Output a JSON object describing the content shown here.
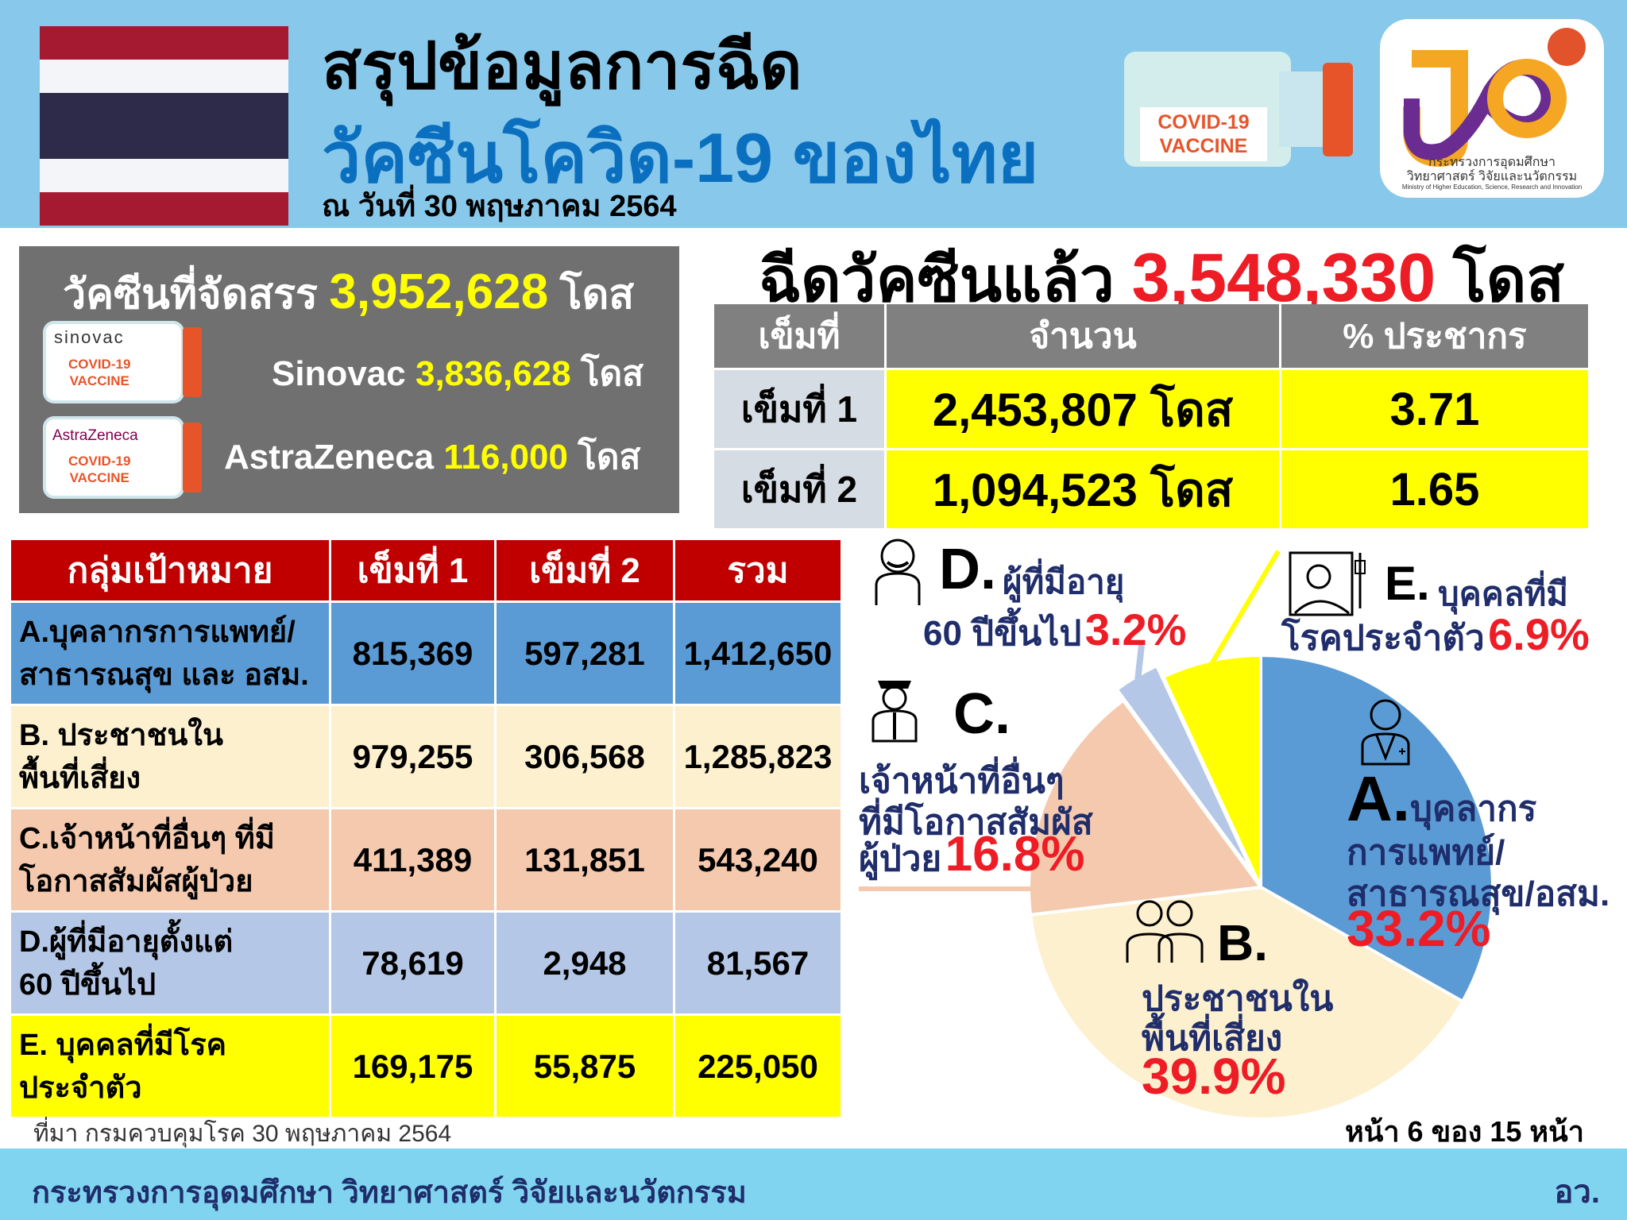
{
  "header": {
    "title_line1": "สรุปข้อมูลการฉีด",
    "title_line2": "วัคซีนโควิด-19 ของไทย",
    "date": "ณ วันที่ 30 พฤษภาคม 2564",
    "vial_label": [
      "COVID-19",
      "VACCINE"
    ],
    "logo_text": [
      "กระทรวงการอุดมศึกษา",
      "วิทยาศาสตร์ วิจัยและนวัตกรรม",
      "Ministry of Higher Education, Science, Research and Innovation"
    ],
    "flag_colors": [
      "#a51931",
      "#f4f5f8",
      "#2d2a4a",
      "#f4f5f8",
      "#a51931"
    ]
  },
  "allocation": {
    "label": "วัคซีนที่จัดสรร",
    "total": "3,952,628",
    "unit": "โดส",
    "vaccines": [
      {
        "brand": "sinovac",
        "vial_label": [
          "COVID-19",
          "VACCINE"
        ],
        "name": "Sinovac",
        "value": "3,836,628",
        "unit": "โดส"
      },
      {
        "brand": "AstraZeneca",
        "vial_label": [
          "COVID-19",
          "VACCINE"
        ],
        "name": "AstraZeneca",
        "value": "116,000",
        "unit": "โดส"
      }
    ]
  },
  "administered": {
    "label": "ฉีดวัคซีนแล้ว",
    "total": "3,548,330",
    "unit": "โดส",
    "columns": [
      "เข็มที่",
      "จำนวน",
      "% ประชากร"
    ],
    "rows": [
      {
        "dose": "เข็มที่ 1",
        "count": "2,453,807 โดส",
        "percent": "3.71"
      },
      {
        "dose": "เข็มที่ 2",
        "count": "1,094,523 โดส",
        "percent": "1.65"
      }
    ]
  },
  "groups_table": {
    "columns": [
      "กลุ่มเป้าหมาย",
      "เข็มที่ 1",
      "เข็มที่ 2",
      "รวม"
    ],
    "rows": [
      {
        "name": [
          "A.บุคลากรการแพทย์/",
          "สาธารณสุข และ อสม."
        ],
        "dose1": "815,369",
        "dose2": "597,281",
        "total": "1,412,650",
        "color": "#5b9bd5"
      },
      {
        "name": [
          "B. ประชาชนใน",
          "พื้นที่เสี่ยง"
        ],
        "dose1": "979,255",
        "dose2": "306,568",
        "total": "1,285,823",
        "color": "#fdf0cf"
      },
      {
        "name": [
          "C.เจ้าหน้าที่อื่นๆ ที่มี",
          "โอกาสสัมผัสผู้ป่วย"
        ],
        "dose1": "411,389",
        "dose2": "131,851",
        "total": "543,240",
        "color": "#f4c9ad"
      },
      {
        "name": [
          "D.ผู้ที่มีอายุตั้งแต่",
          "60 ปีขึ้นไป"
        ],
        "dose1": "78,619",
        "dose2": "2,948",
        "total": "81,567",
        "color": "#b4c7e7"
      },
      {
        "name": [
          "E. บุคคลที่มีโรค",
          "ประจำตัว"
        ],
        "dose1": "169,175",
        "dose2": "55,875",
        "total": "225,050",
        "color": "#ffff00"
      }
    ]
  },
  "source": "ที่มา กรมควบคุมโรค 30 พฤษภาคม 2564",
  "page_label": "หน้า 6 ของ 15 หน้า",
  "footer": {
    "ministry": "กระทรวงการอุดมศึกษา วิทยาศาสตร์ วิจัยและนวัตกรรม",
    "abbr": "อว."
  },
  "chart_data": {
    "type": "pie",
    "start": "top",
    "direction": "clockwise",
    "slices": [
      {
        "letter": "A.",
        "label": [
          "บุคลากร",
          "การแพทย์/",
          "สาธารณสุข/อสม."
        ],
        "value": 33.2,
        "pct": "33.2%",
        "color": "#5b9bd5",
        "icon": "doctor-icon"
      },
      {
        "letter": "B.",
        "label": [
          "ประชาชนใน",
          "พื้นที่เสี่ยง"
        ],
        "value": 39.9,
        "pct": "39.9%",
        "color": "#fdf0cf",
        "icon": "people-icon"
      },
      {
        "letter": "C.",
        "label": [
          "เจ้าหน้าที่อื่นๆ",
          "ที่มีโอกาสสัมผัส",
          "ผู้ป่วย"
        ],
        "value": 16.8,
        "pct": "16.8%",
        "color": "#f4c9ad",
        "icon": "officer-icon"
      },
      {
        "letter": "D.",
        "label": [
          "ผู้ที่มีอายุ",
          "60 ปีขึ้นไป"
        ],
        "value": 3.2,
        "pct": "3.2%",
        "color": "#b4c7e7",
        "icon": "elderly-man-icon"
      },
      {
        "letter": "E.",
        "label": [
          "บุคคลที่มี",
          "โรคประจำตัว"
        ],
        "value": 6.9,
        "pct": "6.9%",
        "color": "#ffff00",
        "icon": "patient-bed-icon"
      }
    ]
  }
}
